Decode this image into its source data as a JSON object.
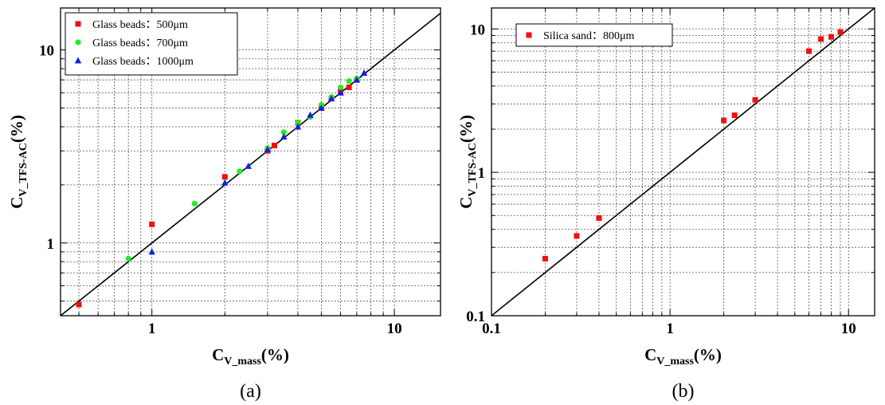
{
  "colors": {
    "red": "#ee1111",
    "green": "#22ee22",
    "blue": "#1122dd",
    "line": "#000000",
    "grid": "#555555"
  },
  "chart_data": [
    {
      "type": "scatter",
      "caption": "(a)",
      "xscale": "log",
      "yscale": "log",
      "xlim": [
        0.42,
        15.5
      ],
      "ylim": [
        0.42,
        16.5
      ],
      "grid": true,
      "legend_position": "top-left",
      "xlabel": {
        "main": "C",
        "sub": "V_mass",
        "tail": "(%)"
      },
      "ylabel": {
        "main": "C",
        "sub": "V_TFS-AC",
        "tail": "(%)"
      },
      "xticks": [
        {
          "v": 1,
          "label": "1"
        },
        {
          "v": 10,
          "label": "10"
        }
      ],
      "yticks": [
        {
          "v": 1,
          "label": "1"
        },
        {
          "v": 10,
          "label": "10"
        }
      ],
      "reference_line": "y = x",
      "series": [
        {
          "name": "Glass beads：500μm",
          "marker": "square",
          "color": "#ee1111",
          "x": [
            0.5,
            1,
            2,
            3,
            3.2,
            4,
            5,
            5.5,
            6,
            6.5,
            7
          ],
          "y": [
            0.48,
            1.25,
            2.2,
            3.0,
            3.2,
            4.2,
            5.1,
            5.6,
            6.1,
            6.4,
            7.0
          ]
        },
        {
          "name": "Glass beads：700μm",
          "marker": "circle",
          "color": "#22ee22",
          "x": [
            0.8,
            1.5,
            2.3,
            3,
            3.5,
            4,
            4.5,
            5,
            5.5,
            6,
            6.5,
            7
          ],
          "y": [
            0.83,
            1.6,
            2.35,
            3.1,
            3.75,
            4.2,
            4.5,
            5.2,
            5.7,
            6.4,
            6.9,
            7.1
          ]
        },
        {
          "name": "Glass beads：1000μm",
          "marker": "triangle",
          "color": "#1122dd",
          "x": [
            1,
            2,
            2.5,
            3,
            3.5,
            4,
            4.5,
            5,
            5.5,
            6,
            7,
            7.5
          ],
          "y": [
            0.9,
            2.05,
            2.5,
            3.05,
            3.55,
            4.0,
            4.6,
            5.0,
            5.6,
            6.0,
            7.0,
            7.6
          ]
        }
      ]
    },
    {
      "type": "scatter",
      "caption": "(b)",
      "xscale": "log",
      "yscale": "log",
      "xlim": [
        0.1,
        14
      ],
      "ylim": [
        0.1,
        14
      ],
      "grid": true,
      "legend_position": "top-left",
      "xlabel": {
        "main": "C",
        "sub": "V_mass",
        "tail": "(%)"
      },
      "ylabel": {
        "main": "C",
        "sub": "V_TFS-AC",
        "tail": "(%)"
      },
      "xticks": [
        {
          "v": 0.1,
          "label": "0.1"
        },
        {
          "v": 1,
          "label": "1"
        },
        {
          "v": 10,
          "label": "10"
        }
      ],
      "yticks": [
        {
          "v": 0.1,
          "label": "0.1"
        },
        {
          "v": 1,
          "label": "1"
        },
        {
          "v": 10,
          "label": "10"
        }
      ],
      "reference_line": "y = x",
      "series": [
        {
          "name": "Silica sand：800μm",
          "marker": "square",
          "color": "#ee1111",
          "x": [
            0.2,
            0.3,
            0.4,
            2,
            2.3,
            3,
            6,
            7,
            8,
            9
          ],
          "y": [
            0.25,
            0.36,
            0.48,
            2.3,
            2.5,
            3.2,
            7.0,
            8.5,
            8.8,
            9.5
          ]
        }
      ]
    }
  ]
}
